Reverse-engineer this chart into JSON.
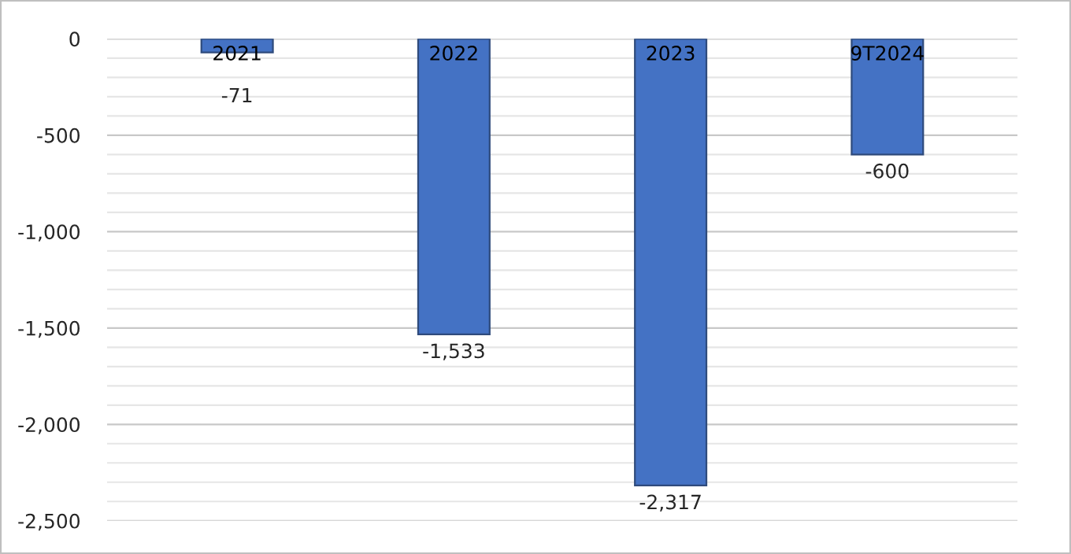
{
  "chart_data": {
    "type": "bar",
    "categories": [
      "2021",
      "2022",
      "2023",
      "9T2024"
    ],
    "values": [
      -71,
      -1533,
      -2317,
      -600
    ],
    "color": "#4472c4",
    "value_labels": [
      "-71",
      "-1,533",
      "-2,317",
      "-600"
    ],
    "ylim": [
      -2500,
      0
    ],
    "yticks": [
      {
        "value": -2500,
        "label": "-2,500"
      },
      {
        "value": -2400,
        "label": null
      },
      {
        "value": -2300,
        "label": null
      },
      {
        "value": -2200,
        "label": null
      },
      {
        "value": -2100,
        "label": null
      },
      {
        "value": -2000,
        "label": "-2,000"
      },
      {
        "value": -1900,
        "label": null
      },
      {
        "value": -1800,
        "label": null
      },
      {
        "value": -1700,
        "label": null
      },
      {
        "value": -1600,
        "label": null
      },
      {
        "value": -1500,
        "label": "-1,500"
      },
      {
        "value": -1400,
        "label": null
      },
      {
        "value": -1300,
        "label": null
      },
      {
        "value": -1200,
        "label": null
      },
      {
        "value": -1100,
        "label": null
      },
      {
        "value": -1000,
        "label": "-1,000"
      },
      {
        "value": -900,
        "label": null
      },
      {
        "value": -800,
        "label": null
      },
      {
        "value": -700,
        "label": null
      },
      {
        "value": -600,
        "label": null
      },
      {
        "value": -500,
        "label": "-500"
      },
      {
        "value": -400,
        "label": null
      },
      {
        "value": -300,
        "label": null
      },
      {
        "value": -200,
        "label": null
      },
      {
        "value": -100,
        "label": null
      },
      0
    ],
    "grid": "y"
  }
}
